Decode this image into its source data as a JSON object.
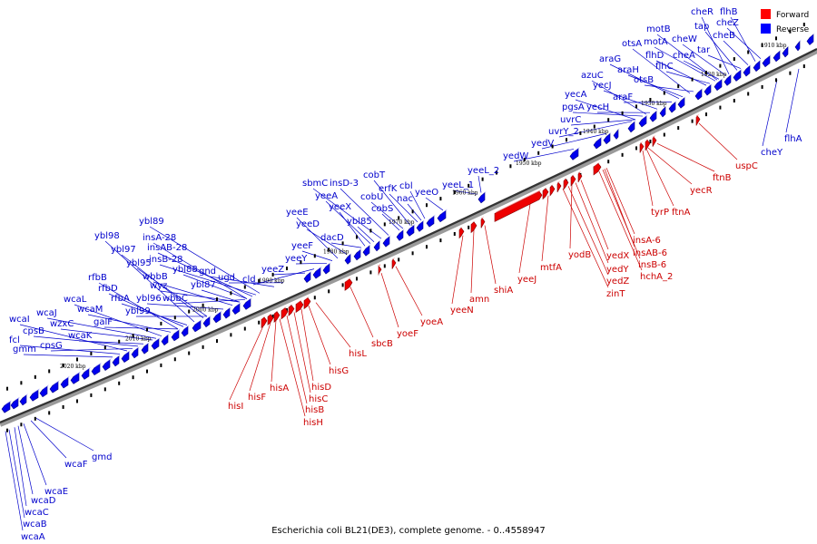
{
  "legend": {
    "forward": {
      "label": "Forward",
      "color": "#ff0000"
    },
    "reverse": {
      "label": "Reverse",
      "color": "#0000ff"
    }
  },
  "caption": "Escherichia coli BL21(DE3), complete genome. - 0..4558947",
  "ticks": [
    "1910 kbp",
    "1920 kbp",
    "1930 kbp",
    "1940 kbp",
    "1950 kbp",
    "1960 kbp",
    "1970 kbp",
    "1980 kbp",
    "1990 kbp",
    "2000 kbp",
    "2010 kbp",
    "2020 kbp"
  ],
  "reverse_labels": [
    "cheR",
    "flhB",
    "tap",
    "cheZ",
    "motB",
    "cheB",
    "cheW",
    "otsA",
    "motA",
    "tar",
    "araG",
    "flhD",
    "cheA",
    "araH",
    "flhC",
    "azuC",
    "otsB",
    "yecJ",
    "araF",
    "yecA",
    "pgsA",
    "yecH",
    "uvrC",
    "uvrY_2",
    "yedV",
    "yedW",
    "yeeL_2",
    "cobT",
    "erfK",
    "cbl",
    "cobU",
    "yeeO",
    "yeeL_1",
    "sbmC",
    "insD-3",
    "nac",
    "yeeA",
    "cobS",
    "yeeX",
    "yeeE",
    "dacD",
    "yeeD",
    "ybl85",
    "yeeF",
    "yeeY",
    "ybl89",
    "insA-28",
    "ybl98",
    "insAB-28",
    "ybl97",
    "insB-28",
    "rfbB",
    "ybl95",
    "wbbB",
    "ybl88",
    "gnd",
    "rfbD",
    "wyz",
    "ugd",
    "wcaL",
    "rfbA",
    "ybl96",
    "ybl87",
    "wbbC",
    "wcaJ",
    "wcaM",
    "ybl99",
    "yeeZ",
    "cld",
    "wcaI",
    "galF",
    "cpsB",
    "wzxC",
    "fcl",
    "wcaK",
    "cpsG",
    "gmm",
    "cheY",
    "flhA",
    "gmd",
    "wcaF",
    "wcaE",
    "wcaD",
    "wcaC",
    "wcaB",
    "wcaA"
  ],
  "forward_labels": [
    "ftnB",
    "uspC",
    "yecR",
    "tyrP",
    "ftnA",
    "insA-6",
    "insAB-6",
    "insB-6",
    "hchA_2",
    "yodB",
    "yedX",
    "mtfA",
    "yedY",
    "yedZ",
    "zinT",
    "yeeJ",
    "shiA",
    "amn",
    "yeeN",
    "yoeA",
    "yoeF",
    "sbcB",
    "hisL",
    "hisG",
    "hisD",
    "hisC",
    "hisB",
    "hisH",
    "hisA",
    "hisF",
    "hisI"
  ]
}
